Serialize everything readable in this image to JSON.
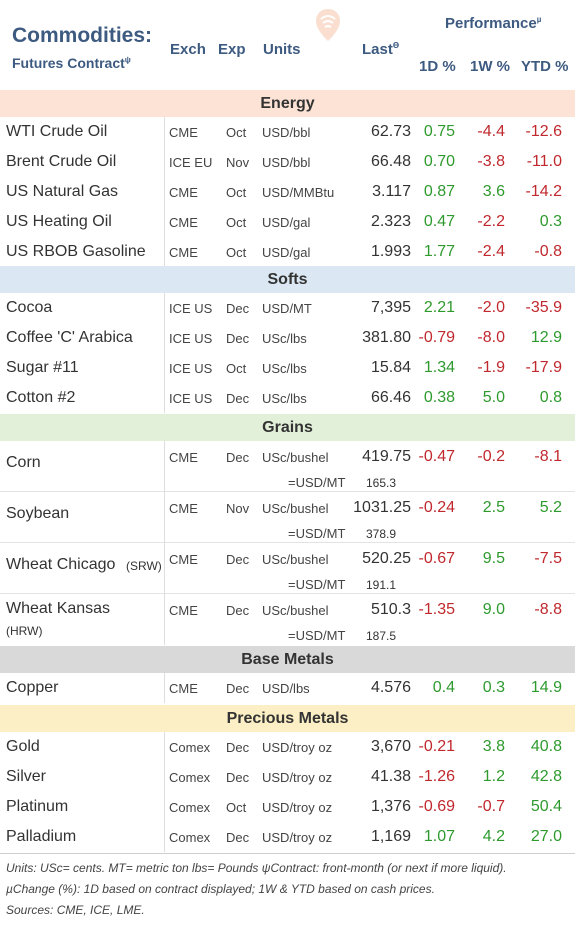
{
  "header": {
    "title": "Commodities:",
    "subtitle": "Futures Contract",
    "subtitle_mark": "ψ",
    "col_exch": "Exch",
    "col_exp": "Exp",
    "col_units": "Units",
    "col_last": "Last",
    "col_last_mark": "ϴ",
    "performance": "Performance",
    "performance_mark": "µ",
    "col_1d": "1D %",
    "col_1w": "1W %",
    "col_ytd": "YTD %"
  },
  "colors": {
    "positive": "#2e9a2e",
    "negative": "#c0282d",
    "header_text": "#3d5a80"
  },
  "chart_data": {
    "type": "table",
    "sections": [
      {
        "name": "Energy",
        "rows": [
          {
            "name": "WTI Crude Oil",
            "exch": "CME",
            "exp": "Oct",
            "units": "USD/bbl",
            "last": "62.73",
            "d1": "0.75",
            "w1": "-4.4",
            "ytd": "-12.6"
          },
          {
            "name": "Brent Crude Oil",
            "exch": "ICE EU",
            "exp": "Nov",
            "units": "USD/bbl",
            "last": "66.48",
            "d1": "0.70",
            "w1": "-3.8",
            "ytd": "-11.0"
          },
          {
            "name": "US Natural Gas",
            "exch": "CME",
            "exp": "Oct",
            "units": "USD/MMBtu",
            "last": "3.117",
            "d1": "0.87",
            "w1": "3.6",
            "ytd": "-14.2"
          },
          {
            "name": "US Heating Oil",
            "exch": "CME",
            "exp": "Oct",
            "units": "USD/gal",
            "last": "2.323",
            "d1": "0.47",
            "w1": "-2.2",
            "ytd": "0.3"
          },
          {
            "name": "US RBOB Gasoline",
            "exch": "CME",
            "exp": "Oct",
            "units": "USD/gal",
            "last": "1.993",
            "d1": "1.77",
            "w1": "-2.4",
            "ytd": "-0.8"
          }
        ]
      },
      {
        "name": "Softs",
        "rows": [
          {
            "name": "Cocoa",
            "exch": "ICE US",
            "exp": "Dec",
            "units": "USD/MT",
            "last": "7,395",
            "d1": "2.21",
            "w1": "-2.0",
            "ytd": "-35.9"
          },
          {
            "name": "Coffee 'C' Arabica",
            "exch": "ICE US",
            "exp": "Dec",
            "units": "USc/lbs",
            "last": "381.80",
            "d1": "-0.79",
            "w1": "-8.0",
            "ytd": "12.9"
          },
          {
            "name": "Sugar #11",
            "exch": "ICE US",
            "exp": "Oct",
            "units": "USc/lbs",
            "last": "15.84",
            "d1": "1.34",
            "w1": "-1.9",
            "ytd": "-17.9"
          },
          {
            "name": "Cotton #2",
            "exch": "ICE US",
            "exp": "Dec",
            "units": "USc/lbs",
            "last": "66.46",
            "d1": "0.38",
            "w1": "5.0",
            "ytd": "0.8"
          }
        ]
      },
      {
        "name": "Grains",
        "rows": [
          {
            "name": "Corn",
            "name_sub": "",
            "exch": "CME",
            "exp": "Dec",
            "units": "USc/bushel",
            "last": "419.75",
            "units2": "=USD/MT",
            "last2": "165.3",
            "d1": "-0.47",
            "w1": "-0.2",
            "ytd": "-8.1"
          },
          {
            "name": "Soybean",
            "name_sub": "",
            "exch": "CME",
            "exp": "Nov",
            "units": "USc/bushel",
            "last": "1031.25",
            "units2": "=USD/MT",
            "last2": "378.9",
            "d1": "-0.24",
            "w1": "2.5",
            "ytd": "5.2"
          },
          {
            "name": "Wheat Chicago",
            "name_sub": "(SRW)",
            "exch": "CME",
            "exp": "Dec",
            "units": "USc/bushel",
            "last": "520.25",
            "units2": "=USD/MT",
            "last2": "191.1",
            "d1": "-0.67",
            "w1": "9.5",
            "ytd": "-7.5"
          },
          {
            "name": "Wheat Kansas",
            "name_sub": "(HRW)",
            "exch": "CME",
            "exp": "Dec",
            "units": "USc/bushel",
            "last": "510.3",
            "units2": "=USD/MT",
            "last2": "187.5",
            "d1": "-1.35",
            "w1": "9.0",
            "ytd": "-8.8"
          }
        ]
      },
      {
        "name": "Base Metals",
        "rows": [
          {
            "name": "Copper",
            "exch": "CME",
            "exp": "Dec",
            "units": "USD/lbs",
            "last": "4.576",
            "d1": "0.4",
            "w1": "0.3",
            "ytd": "14.9"
          }
        ]
      },
      {
        "name": "Precious Metals",
        "rows": [
          {
            "name": "Gold",
            "exch": "Comex",
            "exp": "Dec",
            "units": "USD/troy oz",
            "last": "3,670",
            "d1": "-0.21",
            "w1": "3.8",
            "ytd": "40.8"
          },
          {
            "name": "Silver",
            "exch": "Comex",
            "exp": "Dec",
            "units": "USD/troy oz",
            "last": "41.38",
            "d1": "-1.26",
            "w1": "1.2",
            "ytd": "42.8"
          },
          {
            "name": "Platinum",
            "exch": "Comex",
            "exp": "Oct",
            "units": "USD/troy oz",
            "last": "1,376",
            "d1": "-0.69",
            "w1": "-0.7",
            "ytd": "50.4"
          },
          {
            "name": "Palladium",
            "exch": "Comex",
            "exp": "Dec",
            "units": "USD/troy oz",
            "last": "1,169",
            "d1": "1.07",
            "w1": "4.2",
            "ytd": "27.0"
          }
        ]
      }
    ]
  },
  "footer": {
    "line1": "Units: USc= cents.   MT= metric ton    lbs= Pounds   ψContract: front-month (or next if more liquid).",
    "line2": "µChange (%): 1D based on contract displayed; 1W & YTD based on cash prices.",
    "line3": "Sources: CME, ICE, LME."
  }
}
